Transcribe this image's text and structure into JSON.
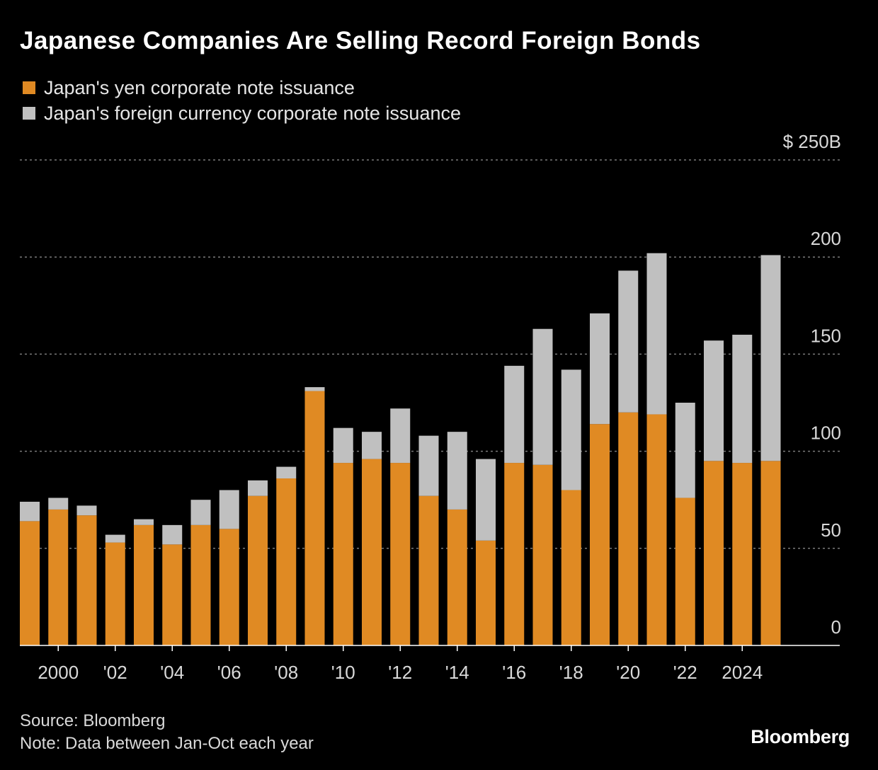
{
  "title": "Japanese Companies Are Selling Record Foreign Bonds",
  "legend": [
    {
      "label": "Japan's yen corporate note issuance",
      "color": "#e08a23"
    },
    {
      "label": "Japan's foreign currency corporate note issuance",
      "color": "#c0c0c0"
    }
  ],
  "source": "Source: Bloomberg",
  "note": "Note: Data between Jan-Oct each year",
  "brand": "Bloomberg",
  "chart_data": {
    "type": "bar",
    "stacked": true,
    "categories": [
      "1999",
      "2000",
      "2001",
      "2002",
      "2003",
      "2004",
      "2005",
      "2006",
      "2007",
      "2008",
      "2009",
      "2010",
      "2011",
      "2012",
      "2013",
      "2014",
      "2015",
      "2016",
      "2017",
      "2018",
      "2019",
      "2020",
      "2021",
      "2022",
      "2023",
      "2024",
      "2025"
    ],
    "series": [
      {
        "name": "Japan's yen corporate note issuance",
        "color": "#e08a23",
        "values": [
          64,
          70,
          67,
          53,
          62,
          52,
          62,
          60,
          77,
          86,
          131,
          94,
          96,
          94,
          77,
          70,
          54,
          94,
          93,
          80,
          114,
          120,
          119,
          76,
          95,
          94,
          95
        ]
      },
      {
        "name": "Japan's foreign currency corporate note issuance",
        "color": "#c0c0c0",
        "values": [
          10,
          6,
          5,
          4,
          3,
          10,
          13,
          20,
          8,
          6,
          2,
          18,
          14,
          28,
          31,
          40,
          42,
          50,
          70,
          62,
          57,
          73,
          83,
          49,
          62,
          66,
          106
        ]
      }
    ],
    "x_tick_labels": [
      "2000",
      "'02",
      "'04",
      "'06",
      "'08",
      "'10",
      "'12",
      "'14",
      "'16",
      "'18",
      "'20",
      "'22",
      "2024"
    ],
    "x_tick_years": [
      "2000",
      "2002",
      "2004",
      "2006",
      "2008",
      "2010",
      "2012",
      "2014",
      "2016",
      "2018",
      "2020",
      "2022",
      "2024"
    ],
    "y_ticks": [
      0,
      50,
      100,
      150,
      200,
      250
    ],
    "y_tick_labels": [
      "0",
      "50",
      "100",
      "150",
      "200",
      "$ 250B"
    ],
    "ylim": [
      0,
      250
    ],
    "grid": true,
    "gridline_style": "dotted",
    "legend_position": "top-left",
    "y_axis_side": "right"
  }
}
